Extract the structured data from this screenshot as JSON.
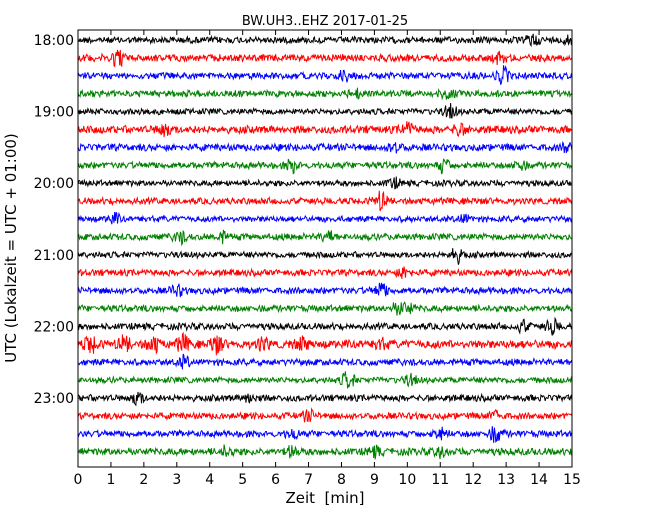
{
  "chart_data": {
    "type": "line",
    "title": "BW.UH3..EHZ 2017-01-25",
    "xlabel": "Zeit  [min]",
    "ylabel": "UTC (Lokalzeit = UTC + 01:00)",
    "xlim": [
      0,
      15
    ],
    "x_ticks": [
      "0",
      "1",
      "2",
      "3",
      "4",
      "5",
      "6",
      "7",
      "8",
      "9",
      "10",
      "11",
      "12",
      "13",
      "14",
      "15"
    ],
    "y_ticks": [
      "18:00",
      "19:00",
      "20:00",
      "21:00",
      "22:00",
      "23:00"
    ],
    "traces_per_hour": 4,
    "trace_colors": [
      "#000000",
      "#ff0000",
      "#0000ff",
      "#008000"
    ],
    "traces": [
      {
        "start": "18:00",
        "amplitude": 1.0,
        "events": [
          [
            13.8,
            1.6
          ],
          [
            14.9,
            1.6
          ]
        ]
      },
      {
        "start": "18:15",
        "amplitude": 1.1,
        "events": [
          [
            1.2,
            2.6
          ],
          [
            12.8,
            1.5
          ]
        ]
      },
      {
        "start": "18:30",
        "amplitude": 1.0,
        "events": [
          [
            8.1,
            1.6
          ],
          [
            12.9,
            2.6
          ]
        ]
      },
      {
        "start": "18:45",
        "amplitude": 1.0,
        "events": [
          [
            8.4,
            1.5
          ],
          [
            11.2,
            1.5
          ]
        ]
      },
      {
        "start": "19:00",
        "amplitude": 0.9,
        "events": [
          [
            11.3,
            2.0
          ]
        ]
      },
      {
        "start": "19:15",
        "amplitude": 1.2,
        "events": [
          [
            2.6,
            2.0
          ],
          [
            10.0,
            1.8
          ],
          [
            11.6,
            1.6
          ]
        ]
      },
      {
        "start": "19:30",
        "amplitude": 1.1,
        "events": [
          [
            9.6,
            1.6
          ],
          [
            14.9,
            1.5
          ]
        ]
      },
      {
        "start": "19:45",
        "amplitude": 1.0,
        "events": [
          [
            6.5,
            1.8
          ],
          [
            11.1,
            2.0
          ],
          [
            13.4,
            1.5
          ]
        ]
      },
      {
        "start": "20:00",
        "amplitude": 0.9,
        "events": [
          [
            9.6,
            1.4
          ]
        ]
      },
      {
        "start": "20:15",
        "amplitude": 1.0,
        "events": [
          [
            9.2,
            2.8
          ]
        ]
      },
      {
        "start": "20:30",
        "amplitude": 0.9,
        "events": [
          [
            1.1,
            1.5
          ],
          [
            11.7,
            1.3
          ]
        ]
      },
      {
        "start": "20:45",
        "amplitude": 1.0,
        "events": [
          [
            3.1,
            1.7
          ],
          [
            4.4,
            1.5
          ],
          [
            7.6,
            1.6
          ]
        ]
      },
      {
        "start": "21:00",
        "amplitude": 0.9,
        "events": [
          [
            11.5,
            2.4
          ]
        ]
      },
      {
        "start": "21:15",
        "amplitude": 1.0,
        "events": [
          [
            9.9,
            1.6
          ]
        ]
      },
      {
        "start": "21:30",
        "amplitude": 1.0,
        "events": [
          [
            3.0,
            1.5
          ],
          [
            9.2,
            2.4
          ]
        ]
      },
      {
        "start": "21:45",
        "amplitude": 1.0,
        "events": [
          [
            9.7,
            1.4
          ],
          [
            10.0,
            1.6
          ]
        ]
      },
      {
        "start": "22:00",
        "amplitude": 1.0,
        "events": [
          [
            14.4,
            2.3
          ],
          [
            13.5,
            1.6
          ]
        ]
      },
      {
        "start": "22:15",
        "amplitude": 1.3,
        "events": [
          [
            0.4,
            2.6
          ],
          [
            1.4,
            2.4
          ],
          [
            2.3,
            2.3
          ],
          [
            3.2,
            2.4
          ],
          [
            4.2,
            2.6
          ],
          [
            5.6,
            1.8
          ],
          [
            6.8,
            1.6
          ],
          [
            9.2,
            1.4
          ]
        ]
      },
      {
        "start": "22:30",
        "amplitude": 1.0,
        "events": [
          [
            3.2,
            1.7
          ]
        ]
      },
      {
        "start": "22:45",
        "amplitude": 0.9,
        "events": [
          [
            8.2,
            2.6
          ],
          [
            10.1,
            1.5
          ]
        ]
      },
      {
        "start": "23:00",
        "amplitude": 1.0,
        "events": [
          [
            1.8,
            1.7
          ],
          [
            5.2,
            1.4
          ]
        ]
      },
      {
        "start": "23:15",
        "amplitude": 1.0,
        "events": [
          [
            7.0,
            1.6
          ],
          [
            12.7,
            1.5
          ]
        ]
      },
      {
        "start": "23:30",
        "amplitude": 1.0,
        "events": [
          [
            6.5,
            1.4
          ],
          [
            11.0,
            1.5
          ],
          [
            12.7,
            2.6
          ]
        ]
      },
      {
        "start": "23:45",
        "amplitude": 1.1,
        "events": [
          [
            4.5,
            1.5
          ],
          [
            6.5,
            1.6
          ],
          [
            9.0,
            1.4
          ],
          [
            11.0,
            1.4
          ]
        ]
      }
    ],
    "grid": false,
    "legend": "none"
  }
}
